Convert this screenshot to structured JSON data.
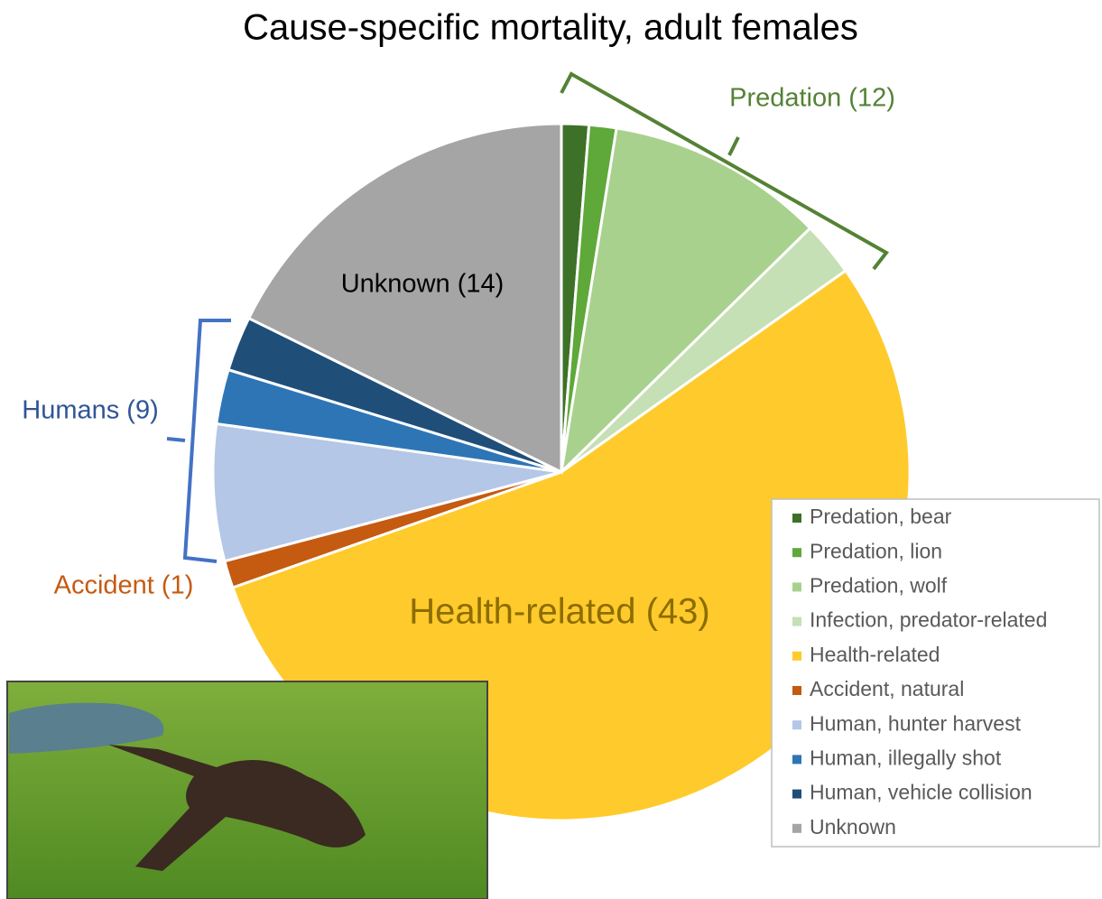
{
  "chart_data": {
    "type": "pie",
    "title": "Cause-specific mortality, adult females",
    "categories": [
      "Predation, bear",
      "Predation, lion",
      "Predation, wolf",
      "Infection, predator-related",
      "Health-related",
      "Accident, natural",
      "Human, hunter harvest",
      "Human, illegally shot",
      "Human, vehicle collision",
      "Unknown"
    ],
    "values": [
      1,
      1,
      8,
      2,
      43,
      1,
      5,
      2,
      2,
      14
    ],
    "colors": [
      "#3e7128",
      "#5fa83a",
      "#a9d18e",
      "#c5e0b4",
      "#ffca2c",
      "#c55a11",
      "#b4c7e7",
      "#2e75b6",
      "#1f4e79",
      "#a5a5a5"
    ],
    "legend": "right",
    "annotations": [
      "Predation (12)",
      "Humans (9)",
      "Accident (1)",
      "Health-related (43)",
      "Unknown (14)"
    ]
  }
}
